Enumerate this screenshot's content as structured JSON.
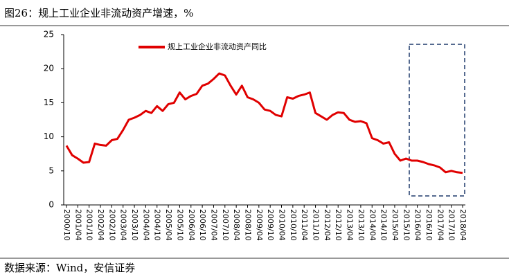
{
  "chart_data": {
    "type": "line",
    "title": "图26：规上工业企业非流动资产增速，%",
    "source": "数据来源：Wind，安信证券",
    "categories": [
      "2000/10",
      null,
      "2001/04",
      null,
      "2001/10",
      null,
      "2002/04",
      null,
      "2002/10",
      null,
      "2003/04",
      null,
      "2003/10",
      null,
      "2004/04",
      null,
      "2004/10",
      null,
      "2005/04",
      null,
      "2005/10",
      null,
      "2006/04",
      null,
      "2006/10",
      null,
      "2007/04",
      null,
      "2007/10",
      null,
      "2008/04",
      null,
      "2008/10",
      null,
      "2009/04",
      null,
      "2009/10",
      null,
      "2010/04",
      null,
      "2010/10",
      null,
      "2011/04",
      null,
      "2011/10",
      null,
      "2012/04",
      null,
      "2012/10",
      null,
      "2013/04",
      null,
      "2013/10",
      null,
      "2014/04",
      null,
      "2014/10",
      null,
      "2015/04",
      null,
      "2015/10",
      null,
      "2016/04",
      null,
      "2016/10",
      null,
      "2017/04",
      null,
      "2017/10",
      null,
      "2018/04"
    ],
    "series": [
      {
        "name": "规上工业企业非流动资产同比",
        "color": "#e00000",
        "values": [
          8.7,
          7.3,
          6.8,
          6.2,
          6.3,
          9.0,
          8.8,
          8.7,
          9.5,
          9.7,
          11.0,
          12.5,
          12.8,
          13.2,
          13.8,
          13.5,
          14.5,
          13.8,
          14.8,
          15.0,
          16.5,
          15.5,
          16.0,
          16.3,
          17.5,
          17.8,
          18.5,
          19.3,
          19.0,
          17.5,
          16.2,
          17.5,
          15.8,
          15.5,
          15.0,
          14.0,
          13.8,
          13.2,
          13.0,
          15.8,
          15.6,
          16.0,
          16.2,
          16.5,
          13.5,
          13.0,
          12.5,
          13.2,
          13.6,
          13.5,
          12.5,
          12.2,
          12.3,
          12.0,
          9.8,
          9.5,
          9.0,
          9.2,
          7.5,
          6.5,
          6.8,
          6.5,
          6.5,
          6.3,
          6.0,
          5.8,
          5.5,
          4.8,
          5.0,
          4.8,
          4.7
        ]
      }
    ],
    "ylim": [
      0,
      25
    ],
    "yticks": [
      0,
      5,
      10,
      15,
      20,
      25
    ],
    "grid": false,
    "legend": "top-left"
  }
}
